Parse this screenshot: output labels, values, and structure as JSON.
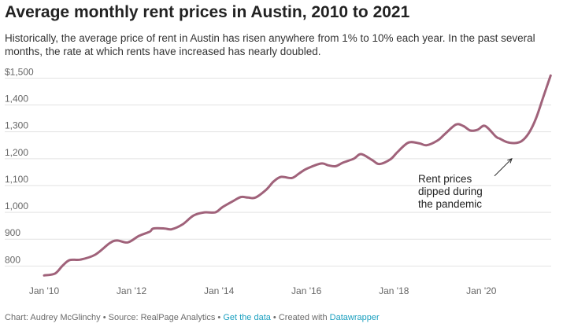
{
  "header": {
    "title": "Average monthly rent prices in Austin, 2010 to 2021",
    "subtitle": "Historically, the average price of rent in Austin has risen anywhere from 1% to 10% each year. In the past several months, the rate at which rents have increased has nearly doubled."
  },
  "chart_data": {
    "type": "line",
    "title": "Average monthly rent prices in Austin, 2010 to 2021",
    "xlabel": "",
    "ylabel": "",
    "x_range": [
      "2010-01",
      "2021-06"
    ],
    "ylim": [
      760,
      1510
    ],
    "grid": true,
    "legend": "none",
    "x_ticks": [
      "2010-01",
      "2012-01",
      "2014-01",
      "2016-01",
      "2018-01",
      "2020-01"
    ],
    "x_tick_labels": [
      "Jan '10",
      "Jan '12",
      "Jan '14",
      "Jan '16",
      "Jan '18",
      "Jan '20"
    ],
    "y_ticks": [
      800,
      900,
      1000,
      1100,
      1200,
      1300,
      1400,
      1500
    ],
    "y_tick_labels": [
      "800",
      "900",
      "1,000",
      "1,100",
      "1,200",
      "1,300",
      "1,400",
      "$1,500"
    ],
    "series": [
      {
        "color": "#a0627a",
        "points": [
          [
            "2010-01",
            765
          ],
          [
            "2010-04",
            772
          ],
          [
            "2010-06",
            800
          ],
          [
            "2010-08",
            822
          ],
          [
            "2010-11",
            824
          ],
          [
            "2011-03",
            842
          ],
          [
            "2011-07",
            885
          ],
          [
            "2011-09",
            895
          ],
          [
            "2011-12",
            888
          ],
          [
            "2012-03",
            912
          ],
          [
            "2012-06",
            928
          ],
          [
            "2012-07",
            940
          ],
          [
            "2012-10",
            940
          ],
          [
            "2012-12",
            937
          ],
          [
            "2013-03",
            955
          ],
          [
            "2013-06",
            988
          ],
          [
            "2013-09",
            1000
          ],
          [
            "2013-12",
            1000
          ],
          [
            "2014-02",
            1020
          ],
          [
            "2014-05",
            1043
          ],
          [
            "2014-07",
            1057
          ],
          [
            "2014-09",
            1055
          ],
          [
            "2014-11",
            1055
          ],
          [
            "2015-02",
            1085
          ],
          [
            "2015-04",
            1115
          ],
          [
            "2015-06",
            1132
          ],
          [
            "2015-09",
            1128
          ],
          [
            "2015-11",
            1145
          ],
          [
            "2016-01",
            1162
          ],
          [
            "2016-05",
            1182
          ],
          [
            "2016-07",
            1175
          ],
          [
            "2016-09",
            1172
          ],
          [
            "2016-11",
            1185
          ],
          [
            "2017-02",
            1200
          ],
          [
            "2017-04",
            1217
          ],
          [
            "2017-07",
            1195
          ],
          [
            "2017-09",
            1180
          ],
          [
            "2017-12",
            1197
          ],
          [
            "2018-02",
            1225
          ],
          [
            "2018-05",
            1260
          ],
          [
            "2018-08",
            1257
          ],
          [
            "2018-10",
            1250
          ],
          [
            "2019-01",
            1268
          ],
          [
            "2019-03",
            1292
          ],
          [
            "2019-06",
            1327
          ],
          [
            "2019-08",
            1322
          ],
          [
            "2019-10",
            1305
          ],
          [
            "2019-12",
            1308
          ],
          [
            "2020-02",
            1322
          ],
          [
            "2020-05",
            1282
          ],
          [
            "2020-06",
            1275
          ],
          [
            "2020-08",
            1262
          ],
          [
            "2020-10",
            1258
          ],
          [
            "2020-12",
            1265
          ],
          [
            "2021-02",
            1295
          ],
          [
            "2021-04",
            1350
          ],
          [
            "2021-06",
            1430
          ],
          [
            "2021-08",
            1510
          ]
        ]
      }
    ],
    "annotations": [
      {
        "lines": [
          "Rent prices",
          "dipped during",
          "the pandemic"
        ],
        "target": [
          "2020-10",
          1200
        ]
      }
    ]
  },
  "footer": {
    "credit": "Chart: Audrey McGlinchy • Source: RealPage Analytics • ",
    "get_data_link": "Get the data",
    "created_with": " • Created with ",
    "datawrapper_link": "Datawrapper"
  }
}
